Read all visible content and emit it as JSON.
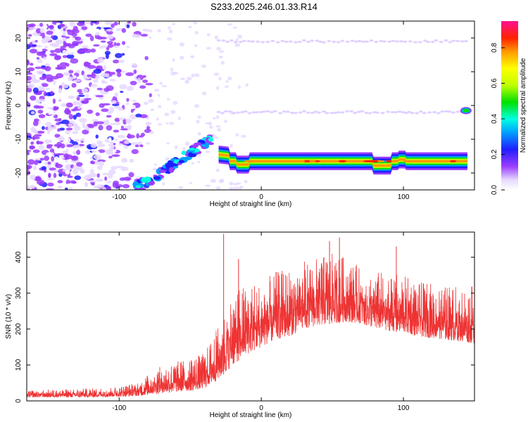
{
  "title": "S233.2025.246.01.33.R14",
  "chart_data": [
    {
      "type": "heatmap",
      "name": "spectrogram",
      "xlabel": "Height of straight line (km)",
      "ylabel": "Frequency (Hz)",
      "xlim": [
        -165,
        150
      ],
      "ylim": [
        -25,
        25
      ],
      "xticks": [
        -100,
        0,
        100
      ],
      "yticks": [
        -20,
        -10,
        0,
        10,
        20
      ],
      "colorbar": {
        "label": "Normalized spectral amplitude",
        "range": [
          0,
          0.95
        ],
        "ticks": [
          0.0,
          0.2,
          0.4,
          0.6,
          0.8
        ]
      },
      "features": [
        {
          "name": "main-tone",
          "x": [
            -30,
            145
          ],
          "freq": -16.5,
          "amplitude": 0.75
        },
        {
          "name": "rising-tone",
          "x": [
            -90,
            -35
          ],
          "freq": [
            -25,
            -10
          ],
          "amplitude": 0.4
        },
        {
          "name": "harmonic-upper",
          "x": [
            -30,
            145
          ],
          "freq": 19,
          "amplitude": 0.08
        },
        {
          "name": "harmonic-lower",
          "x": [
            -30,
            145
          ],
          "freq": -2,
          "amplitude": 0.08
        },
        {
          "name": "end-blob",
          "x": [
            140,
            148
          ],
          "freq": -1.5,
          "amplitude": 0.35
        }
      ]
    },
    {
      "type": "line",
      "name": "snr",
      "xlabel": "Height of straight line (km)",
      "ylabel": "SNR (10 * v/v)",
      "xlim": [
        -165,
        150
      ],
      "ylim": [
        0,
        470
      ],
      "xticks": [
        -100,
        0,
        100
      ],
      "yticks": [
        0,
        100,
        200,
        300,
        400
      ],
      "color": "#ee3333",
      "envelope": {
        "x": [
          -165,
          -120,
          -100,
          -85,
          -75,
          -60,
          -50,
          -40,
          -30,
          -20,
          -10,
          0,
          10,
          20,
          30,
          40,
          50,
          60,
          70,
          80,
          90,
          100,
          110,
          120,
          130,
          140,
          150
        ],
        "low": [
          10,
          10,
          12,
          14,
          20,
          25,
          28,
          35,
          60,
          100,
          130,
          150,
          170,
          180,
          200,
          210,
          215,
          220,
          215,
          200,
          195,
          190,
          180,
          175,
          170,
          165,
          160
        ],
        "high": [
          30,
          35,
          40,
          55,
          90,
          110,
          120,
          135,
          210,
          300,
          330,
          330,
          360,
          370,
          390,
          400,
          410,
          400,
          370,
          360,
          360,
          350,
          330,
          330,
          320,
          320,
          320
        ]
      },
      "spikes": [
        {
          "x": -26.5,
          "y": 465
        },
        {
          "x": -16,
          "y": 395
        },
        {
          "x": 55,
          "y": 455
        },
        {
          "x": 48,
          "y": 445
        },
        {
          "x": 95,
          "y": 430
        }
      ]
    }
  ]
}
